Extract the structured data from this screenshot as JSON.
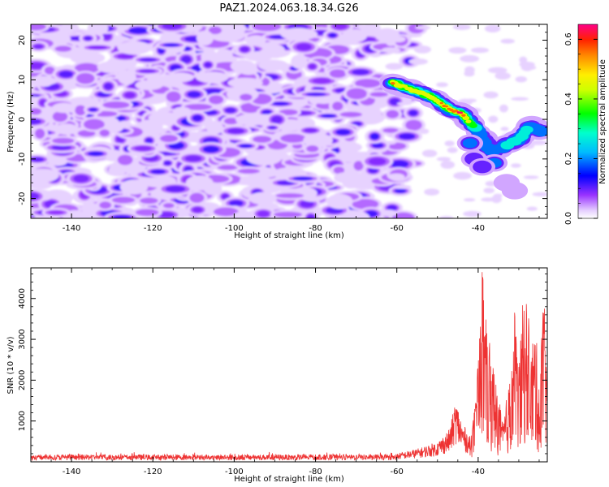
{
  "figure": {
    "title": "PAZ1.2024.063.18.34.G26"
  },
  "chart_data": [
    {
      "type": "heatmap",
      "title": "PAZ1.2024.063.18.34.G26",
      "xlabel": "Height of straight line (km)",
      "ylabel": "Frequency (Hz)",
      "xlim": [
        -150,
        -23
      ],
      "ylim": [
        -25,
        24
      ],
      "xticks": [
        -140,
        -120,
        -100,
        -80,
        -60,
        -40
      ],
      "yticks": [
        -20,
        -10,
        0,
        10,
        20
      ],
      "colorbar": {
        "label": "Normalized spectral amplitude",
        "range": [
          0,
          0.65
        ],
        "ticks": [
          0.0,
          0.2,
          0.4,
          0.6
        ],
        "colors": [
          "#ffffff",
          "#cc99ff",
          "#7700ff",
          "#0000ff",
          "#00ffff",
          "#00ff00",
          "#ffff00",
          "#ff7700",
          "#ff0000",
          "#ff0088"
        ]
      },
      "ridge": {
        "description_points": [
          {
            "x": -59,
            "y": 8.5,
            "amp": 0.52
          },
          {
            "x": -55,
            "y": 7.0,
            "amp": 0.45
          },
          {
            "x": -51,
            "y": 5.5,
            "amp": 0.5
          },
          {
            "x": -47,
            "y": 2.5,
            "amp": 0.6
          },
          {
            "x": -44,
            "y": 1.5,
            "amp": 0.65
          },
          {
            "x": -40,
            "y": -3.0,
            "amp": 0.22
          },
          {
            "x": -37,
            "y": -8.0,
            "amp": 0.2
          },
          {
            "x": -34,
            "y": -7.0,
            "amp": 0.25
          },
          {
            "x": -30,
            "y": -5.0,
            "amp": 0.3
          },
          {
            "x": -27,
            "y": -1.5,
            "amp": 0.25
          },
          {
            "x": -25,
            "y": -3.0,
            "amp": 0.22
          }
        ]
      },
      "background_amplitude_range": [
        0.0,
        0.15
      ]
    },
    {
      "type": "line",
      "xlabel": "Height of straight line (km)",
      "ylabel": "SNR (10 * v/v)",
      "xlim": [
        -150,
        -23
      ],
      "ylim": [
        0,
        4750
      ],
      "xticks": [
        -140,
        -120,
        -100,
        -80,
        -60,
        -40
      ],
      "yticks": [
        1000,
        2000,
        3000,
        4000
      ],
      "color": "#ee3333",
      "series_profile": [
        {
          "x": -150,
          "snr": 100
        },
        {
          "x": -70,
          "snr": 110
        },
        {
          "x": -62,
          "snr": 140
        },
        {
          "x": -58,
          "snr": 200
        },
        {
          "x": -54,
          "snr": 280
        },
        {
          "x": -50,
          "snr": 400
        },
        {
          "x": -47,
          "snr": 650
        },
        {
          "x": -45.5,
          "snr": 1250
        },
        {
          "x": -44,
          "snr": 800
        },
        {
          "x": -42,
          "snr": 500
        },
        {
          "x": -40.5,
          "snr": 1500
        },
        {
          "x": -39.5,
          "snr": 3500
        },
        {
          "x": -39,
          "snr": 4700
        },
        {
          "x": -38,
          "snr": 3000
        },
        {
          "x": -37,
          "snr": 2600
        },
        {
          "x": -35.5,
          "snr": 1800
        },
        {
          "x": -34,
          "snr": 900
        },
        {
          "x": -32,
          "snr": 2000
        },
        {
          "x": -31,
          "snr": 3500
        },
        {
          "x": -30,
          "snr": 2200
        },
        {
          "x": -29,
          "snr": 3900
        },
        {
          "x": -28,
          "snr": 3700
        },
        {
          "x": -27,
          "snr": 2500
        },
        {
          "x": -26,
          "snr": 3200
        },
        {
          "x": -25,
          "snr": 1800
        },
        {
          "x": -24,
          "snr": 3800
        },
        {
          "x": -23,
          "snr": 2500
        }
      ]
    }
  ]
}
